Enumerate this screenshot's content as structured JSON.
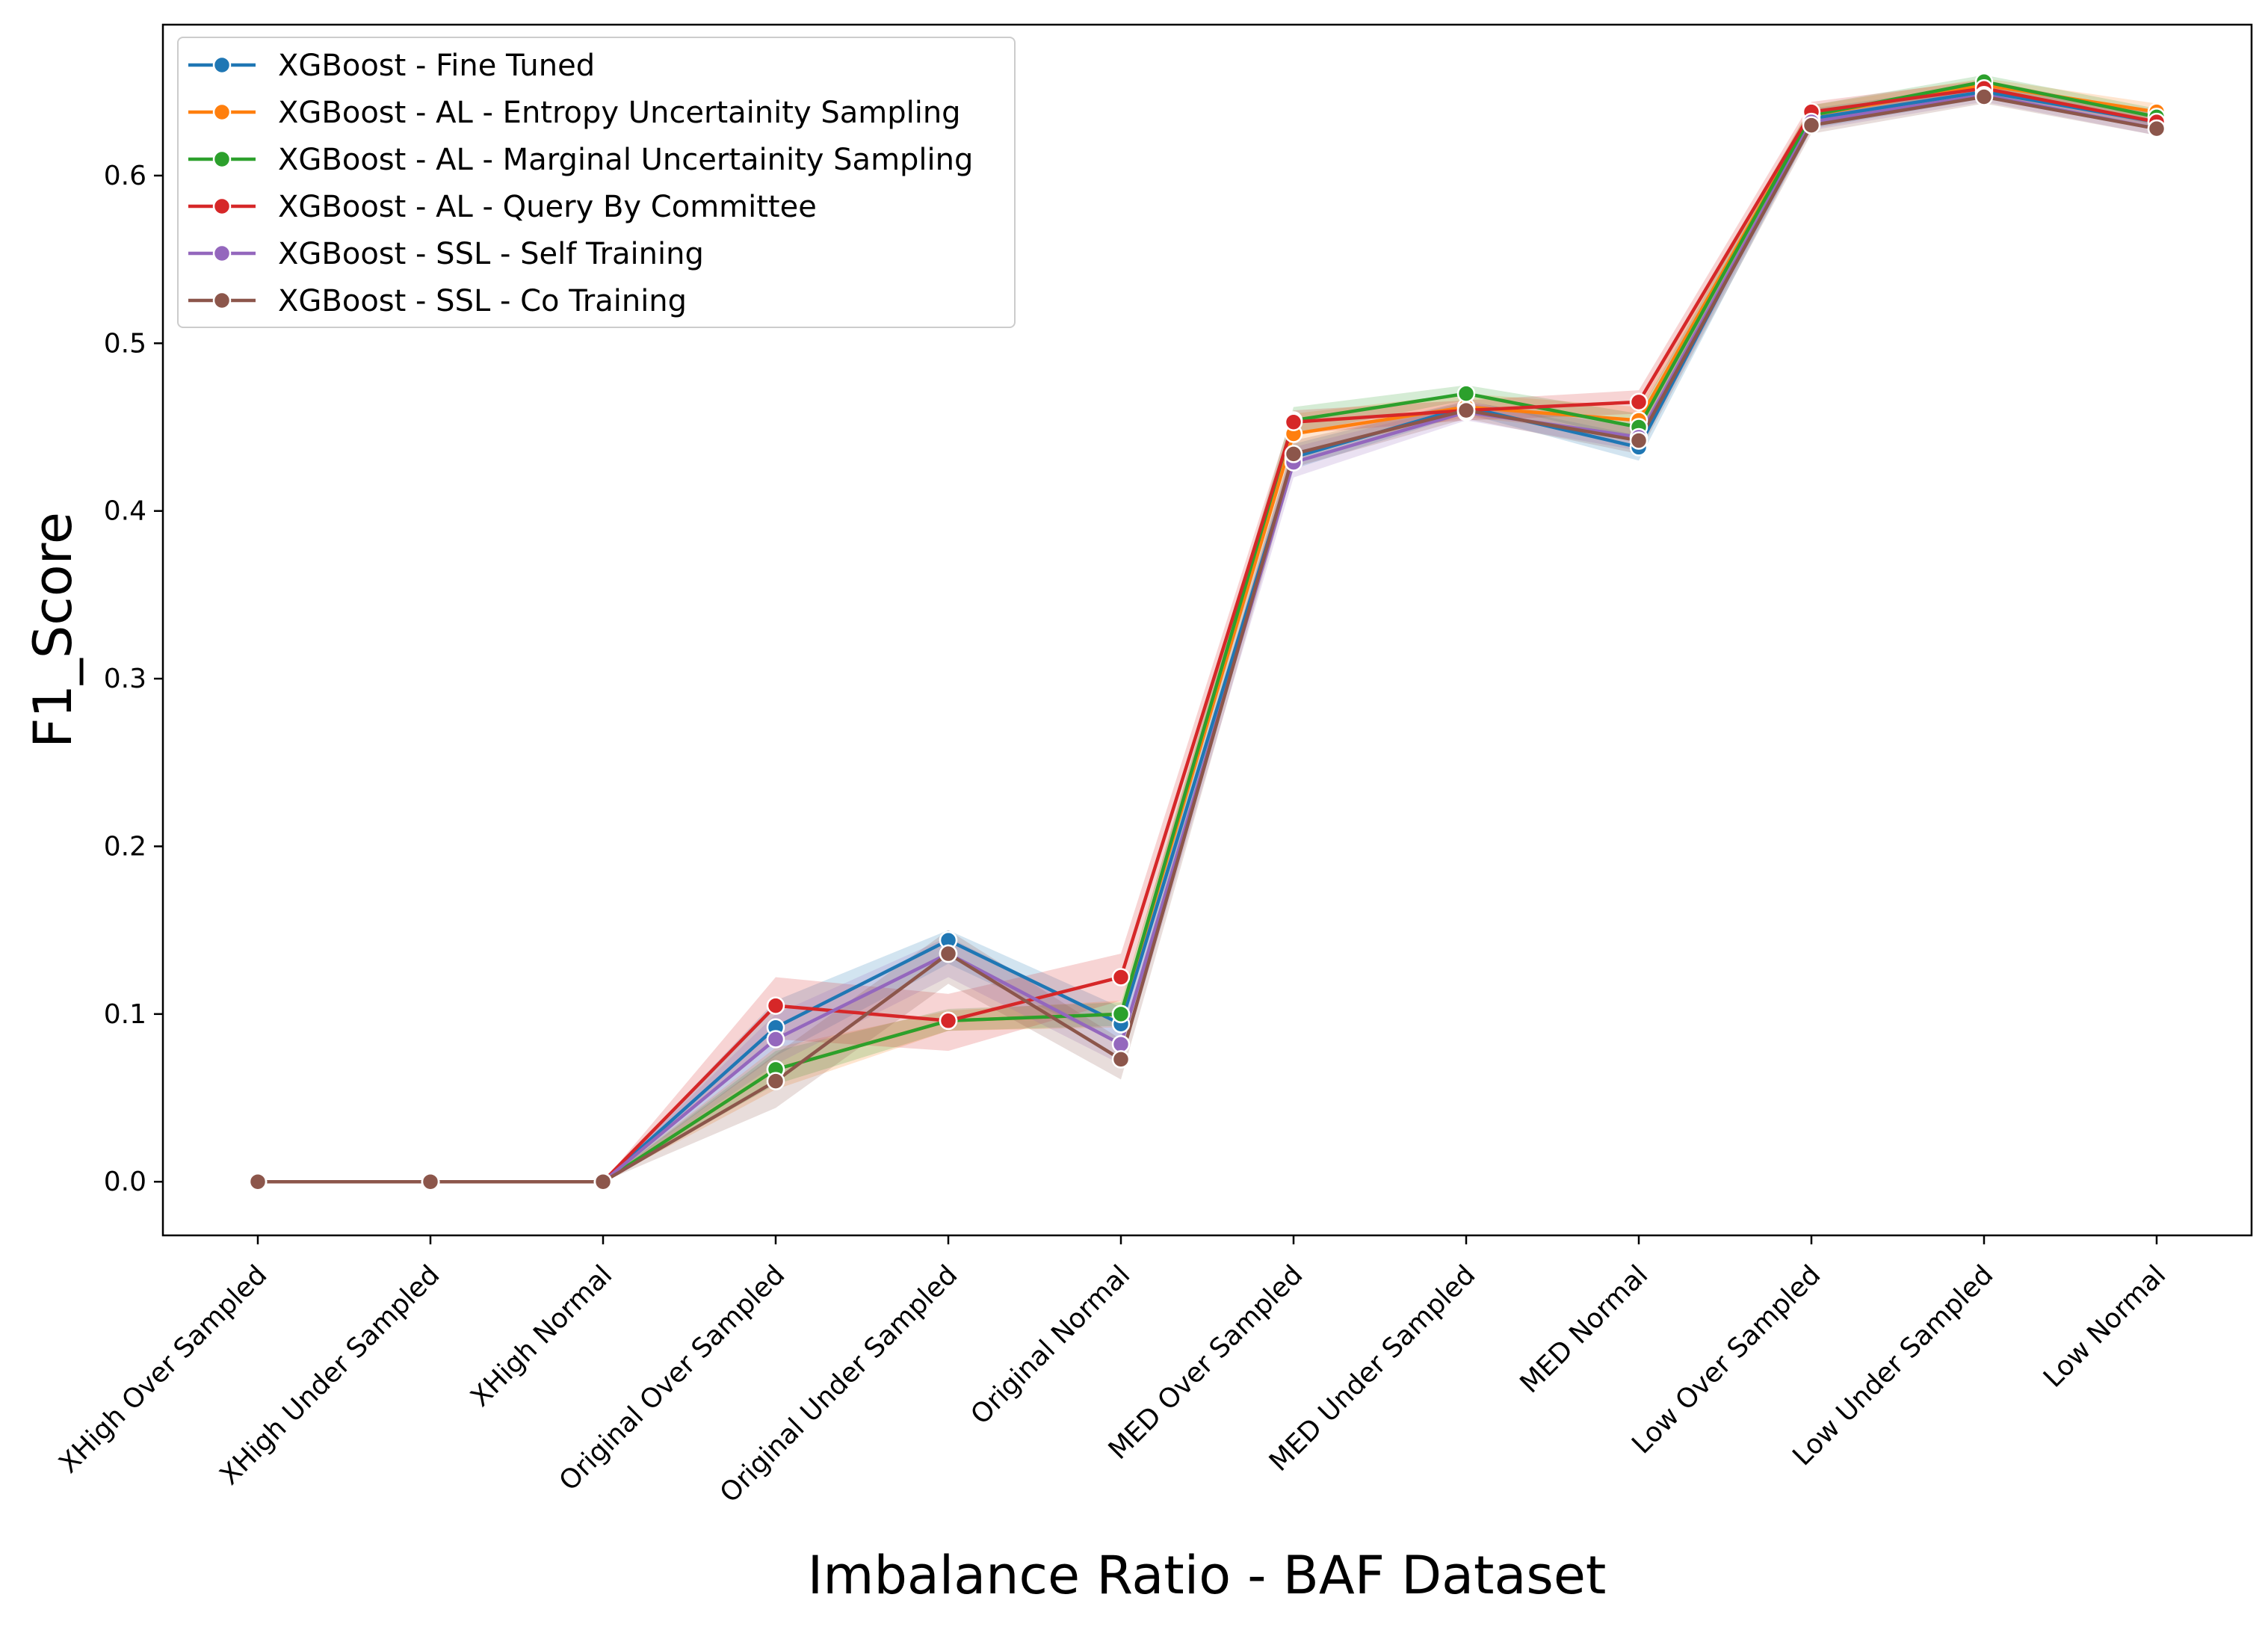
{
  "chart_data": {
    "type": "line",
    "xlabel": "Imbalance Ratio - BAF Dataset",
    "ylabel": "F1_Score",
    "ylim": [
      -0.032,
      0.69
    ],
    "yticks": [
      "0.0",
      "0.1",
      "0.2",
      "0.3",
      "0.4",
      "0.5",
      "0.6"
    ],
    "grid": false,
    "legend_position": "top-left",
    "categories": [
      "XHigh Over Sampled",
      "XHigh Under Sampled",
      "XHigh Normal",
      "Original Over Sampled",
      "Original Under Sampled",
      "Original Normal",
      "MED Over Sampled",
      "MED Under Sampled",
      "MED Normal",
      "Low Over Sampled",
      "Low Under Sampled",
      "Low Normal"
    ],
    "series": [
      {
        "name": "XGBoost - Fine Tuned",
        "color": "#1f77b4",
        "values": [
          0,
          0,
          0,
          0.092,
          0.144,
          0.094,
          0.432,
          0.462,
          0.438,
          0.634,
          0.65,
          0.632
        ],
        "lower": [
          0,
          0,
          0,
          0.075,
          0.13,
          0.082,
          0.425,
          0.458,
          0.43,
          0.628,
          0.646,
          0.627
        ],
        "upper": [
          0,
          0,
          0,
          0.108,
          0.15,
          0.104,
          0.44,
          0.466,
          0.445,
          0.64,
          0.654,
          0.637
        ]
      },
      {
        "name": "XGBoost - AL - Entropy Uncertainity Sampling",
        "color": "#ff7f0e",
        "values": [
          0,
          0,
          0,
          0.067,
          0.096,
          0.1,
          0.446,
          0.462,
          0.454,
          0.636,
          0.654,
          0.638
        ],
        "lower": [
          0,
          0,
          0,
          0.055,
          0.09,
          0.092,
          0.435,
          0.456,
          0.445,
          0.63,
          0.65,
          0.633
        ],
        "upper": [
          0,
          0,
          0,
          0.08,
          0.102,
          0.108,
          0.458,
          0.47,
          0.462,
          0.642,
          0.658,
          0.643
        ]
      },
      {
        "name": "XGBoost - AL - Marginal Uncertainity Sampling",
        "color": "#2ca02c",
        "values": [
          0,
          0,
          0,
          0.067,
          0.096,
          0.1,
          0.454,
          0.47,
          0.45,
          0.636,
          0.656,
          0.635
        ],
        "lower": [
          0,
          0,
          0,
          0.058,
          0.09,
          0.093,
          0.446,
          0.466,
          0.442,
          0.63,
          0.652,
          0.63
        ],
        "upper": [
          0,
          0,
          0,
          0.078,
          0.103,
          0.107,
          0.462,
          0.475,
          0.458,
          0.642,
          0.66,
          0.64
        ]
      },
      {
        "name": "XGBoost - AL - Query By Committee",
        "color": "#d62728",
        "values": [
          0,
          0,
          0,
          0.105,
          0.096,
          0.122,
          0.453,
          0.46,
          0.465,
          0.638,
          0.652,
          0.632
        ],
        "lower": [
          0,
          0,
          0,
          0.085,
          0.078,
          0.108,
          0.446,
          0.454,
          0.458,
          0.632,
          0.648,
          0.627
        ],
        "upper": [
          0,
          0,
          0,
          0.122,
          0.112,
          0.136,
          0.46,
          0.466,
          0.472,
          0.644,
          0.657,
          0.637
        ]
      },
      {
        "name": "XGBoost - SSL - Self Training",
        "color": "#9467bd",
        "values": [
          0,
          0,
          0,
          0.085,
          0.136,
          0.082,
          0.429,
          0.459,
          0.444,
          0.632,
          0.648,
          0.628
        ],
        "lower": [
          0,
          0,
          0,
          0.07,
          0.122,
          0.07,
          0.42,
          0.454,
          0.436,
          0.627,
          0.644,
          0.624
        ],
        "upper": [
          0,
          0,
          0,
          0.1,
          0.146,
          0.094,
          0.438,
          0.464,
          0.452,
          0.637,
          0.652,
          0.632
        ]
      },
      {
        "name": "XGBoost - SSL - Co Training",
        "color": "#8c564b",
        "values": [
          0,
          0,
          0,
          0.06,
          0.136,
          0.073,
          0.434,
          0.46,
          0.442,
          0.63,
          0.647,
          0.628
        ],
        "lower": [
          0,
          0,
          0,
          0.044,
          0.118,
          0.061,
          0.426,
          0.455,
          0.434,
          0.625,
          0.643,
          0.624
        ],
        "upper": [
          0,
          0,
          0,
          0.076,
          0.15,
          0.085,
          0.442,
          0.465,
          0.45,
          0.635,
          0.651,
          0.632
        ]
      }
    ]
  }
}
